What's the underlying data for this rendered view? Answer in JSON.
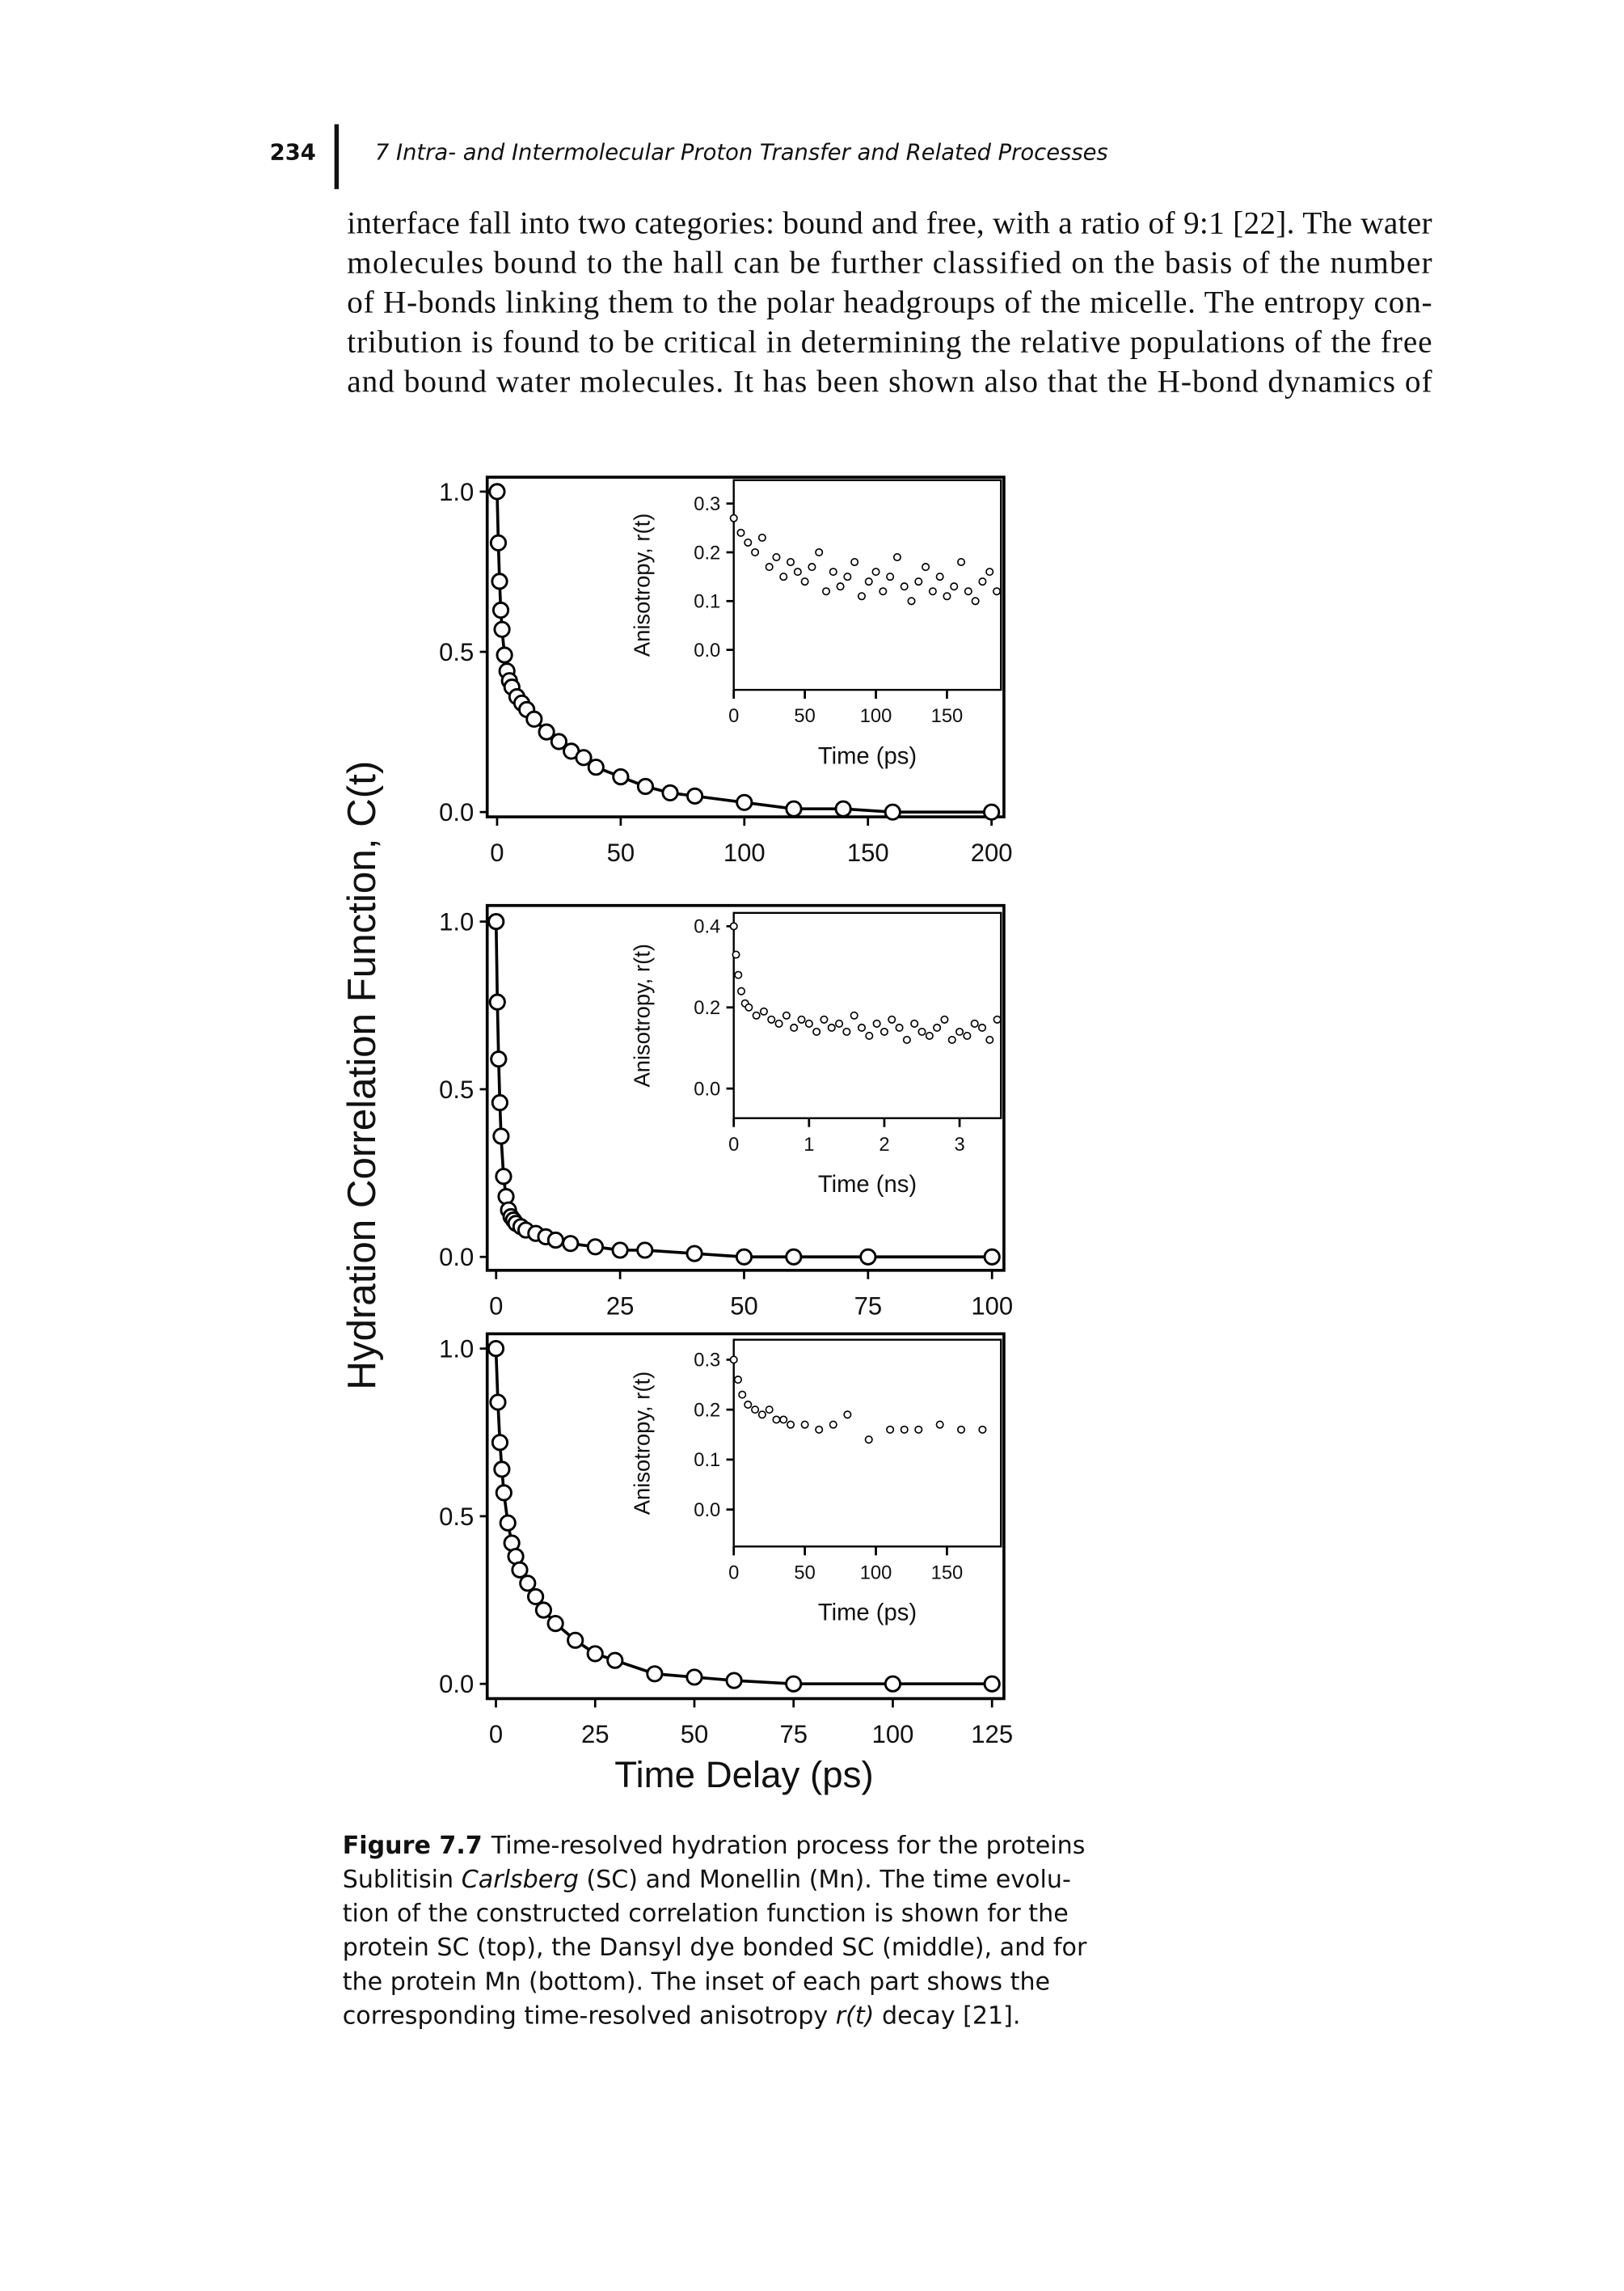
{
  "header": {
    "page_number": "234",
    "running_title": "7 Intra- and Intermolecular Proton Transfer and Related Processes"
  },
  "body": {
    "lines": [
      "interface fall into two categories: bound and free, with a ratio of 9:1 [22]. The water",
      "molecules bound to the hall can be further classified on the basis of the number",
      "of H-bonds linking them to the polar headgroups of the micelle. The entropy con-",
      "tribution is found to be critical in determining the relative populations of the free",
      "and bound water molecules. It has been shown also that the H-bond dynamics of"
    ]
  },
  "figure": {
    "ylabel": "Hydration Correlation Function, C(t)",
    "xlabel": "Time Delay (ps)",
    "caption": {
      "label": "Figure 7.7",
      "lines": [
        [
          "Time-resolved hydration process for the proteins"
        ],
        [
          "Sublitisin ",
          "Carlsberg",
          " (SC) and Monellin (Mn). The time evolu-"
        ],
        [
          "tion of the constructed correlation function is shown for the"
        ],
        [
          "protein SC (top), the Dansyl dye bonded SC (middle), and for"
        ],
        [
          "the protein Mn (bottom). The inset of each part shows the"
        ],
        [
          "corresponding time-resolved anisotropy ",
          "r(t)",
          " decay [21]."
        ]
      ]
    }
  },
  "chart_data": [
    {
      "type": "scatter",
      "fit_line": true,
      "color": "#000000",
      "x": [
        0,
        0.5,
        1,
        1.5,
        2,
        3,
        4,
        5,
        6,
        8,
        10,
        12,
        15,
        20,
        25,
        30,
        35,
        40,
        50,
        60,
        70,
        80,
        100,
        120,
        140,
        160,
        200
      ],
      "values": [
        1.0,
        0.84,
        0.72,
        0.63,
        0.57,
        0.49,
        0.44,
        0.41,
        0.39,
        0.36,
        0.34,
        0.32,
        0.29,
        0.25,
        0.22,
        0.19,
        0.17,
        0.14,
        0.11,
        0.08,
        0.06,
        0.05,
        0.03,
        0.01,
        0.01,
        0,
        0
      ],
      "xlim": [
        -4,
        205
      ],
      "ylim": [
        -0.015,
        1.045
      ],
      "xticks": [
        0,
        50,
        100,
        150,
        200
      ],
      "yticks": [
        {
          "value": 0,
          "label": "0.0"
        },
        {
          "value": 0.5,
          "label": "0.5"
        },
        {
          "value": 1,
          "label": "1.0"
        }
      ]
    },
    {
      "type": "scatter",
      "fit_line": false,
      "color": "#000000",
      "xlabel": "Time (ps)",
      "ylabel": "Anisotropy, r(t)",
      "x": [
        0,
        5,
        10,
        15,
        20,
        25,
        30,
        35,
        40,
        45,
        50,
        55,
        60,
        65,
        70,
        75,
        80,
        85,
        90,
        95,
        100,
        105,
        110,
        115,
        120,
        125,
        130,
        135,
        140,
        145,
        150,
        155,
        160,
        165,
        170,
        175,
        180,
        185
      ],
      "values": [
        0.27,
        0.24,
        0.22,
        0.2,
        0.23,
        0.17,
        0.19,
        0.15,
        0.18,
        0.16,
        0.14,
        0.17,
        0.2,
        0.12,
        0.16,
        0.13,
        0.15,
        0.18,
        0.11,
        0.14,
        0.16,
        0.12,
        0.15,
        0.19,
        0.13,
        0.1,
        0.14,
        0.17,
        0.12,
        0.15,
        0.11,
        0.13,
        0.18,
        0.12,
        0.1,
        0.14,
        0.16,
        0.12
      ],
      "xlim": [
        0,
        188
      ],
      "ylim": [
        -0.082,
        0.348
      ],
      "xticks": [
        0,
        50,
        100,
        150
      ],
      "yticks": [
        {
          "value": 0,
          "label": "0.0"
        },
        0.1,
        0.2,
        0.3
      ]
    },
    {
      "type": "scatter",
      "fit_line": true,
      "color": "#000000",
      "x": [
        0,
        0.25,
        0.5,
        0.75,
        1,
        1.5,
        2,
        2.5,
        3,
        3.5,
        4,
        5,
        6,
        8,
        10,
        12,
        15,
        20,
        25,
        30,
        40,
        50,
        60,
        75,
        100
      ],
      "values": [
        1.0,
        0.76,
        0.59,
        0.46,
        0.36,
        0.24,
        0.18,
        0.14,
        0.12,
        0.11,
        0.1,
        0.09,
        0.08,
        0.07,
        0.06,
        0.05,
        0.04,
        0.03,
        0.02,
        0.02,
        0.01,
        0,
        0,
        0,
        0
      ],
      "xlim": [
        -1.8,
        102.4
      ],
      "ylim": [
        -0.04,
        1.048
      ],
      "xticks": [
        0,
        25,
        50,
        75,
        100
      ],
      "yticks": [
        {
          "value": 0,
          "label": "0.0"
        },
        {
          "value": 0.5,
          "label": "0.5"
        },
        {
          "value": 1,
          "label": "1.0"
        }
      ]
    },
    {
      "type": "scatter",
      "fit_line": false,
      "color": "#000000",
      "xlabel": "Time (ns)",
      "ylabel": "Anisotropy, r(t)",
      "x": [
        0,
        0.03,
        0.06,
        0.1,
        0.15,
        0.2,
        0.3,
        0.4,
        0.5,
        0.6,
        0.7,
        0.8,
        0.9,
        1.0,
        1.1,
        1.2,
        1.3,
        1.4,
        1.5,
        1.6,
        1.7,
        1.8,
        1.9,
        2.0,
        2.1,
        2.2,
        2.3,
        2.4,
        2.5,
        2.6,
        2.7,
        2.8,
        2.9,
        3.0,
        3.1,
        3.2,
        3.3,
        3.4,
        3.5
      ],
      "values": [
        0.4,
        0.33,
        0.28,
        0.24,
        0.21,
        0.2,
        0.18,
        0.19,
        0.17,
        0.16,
        0.18,
        0.15,
        0.17,
        0.16,
        0.14,
        0.17,
        0.15,
        0.16,
        0.14,
        0.18,
        0.15,
        0.13,
        0.16,
        0.14,
        0.17,
        0.15,
        0.12,
        0.16,
        0.14,
        0.13,
        0.15,
        0.17,
        0.12,
        0.14,
        0.13,
        0.16,
        0.15,
        0.12,
        0.17
      ],
      "xlim": [
        0,
        3.55
      ],
      "ylim": [
        -0.073,
        0.433
      ],
      "xticks": [
        0,
        1,
        2,
        3
      ],
      "yticks": [
        {
          "value": 0,
          "label": "0.0"
        },
        0.2,
        0.4
      ]
    },
    {
      "type": "scatter",
      "fit_line": true,
      "color": "#000000",
      "x": [
        0,
        0.5,
        1,
        1.5,
        2,
        3,
        4,
        5,
        6,
        8,
        10,
        12,
        15,
        20,
        25,
        30,
        40,
        50,
        60,
        75,
        100,
        125
      ],
      "values": [
        1.0,
        0.84,
        0.72,
        0.64,
        0.57,
        0.48,
        0.42,
        0.38,
        0.34,
        0.3,
        0.26,
        0.22,
        0.18,
        0.13,
        0.09,
        0.07,
        0.03,
        0.02,
        0.01,
        0,
        0,
        0
      ],
      "xlim": [
        -2.2,
        128
      ],
      "ylim": [
        -0.044,
        1.044
      ],
      "xticks": [
        0,
        25,
        50,
        75,
        100,
        125
      ],
      "yticks": [
        {
          "value": 0,
          "label": "0.0"
        },
        {
          "value": 0.5,
          "label": "0.5"
        },
        {
          "value": 1,
          "label": "1.0"
        }
      ]
    },
    {
      "type": "scatter",
      "fit_line": false,
      "color": "#000000",
      "xlabel": "Time (ps)",
      "ylabel": "Anisotropy, r(t)",
      "x": [
        0,
        3,
        6,
        10,
        15,
        20,
        25,
        30,
        35,
        40,
        50,
        60,
        70,
        80,
        95,
        110,
        120,
        130,
        145,
        160,
        175
      ],
      "values": [
        0.3,
        0.26,
        0.23,
        0.21,
        0.2,
        0.19,
        0.2,
        0.18,
        0.18,
        0.17,
        0.17,
        0.16,
        0.17,
        0.19,
        0.14,
        0.16,
        0.16,
        0.16,
        0.17,
        0.16,
        0.16
      ],
      "xlim": [
        0,
        188
      ],
      "ylim": [
        -0.074,
        0.34
      ],
      "xticks": [
        0,
        50,
        100,
        150
      ],
      "yticks": [
        {
          "value": 0,
          "label": "0.0"
        },
        0.1,
        0.2,
        0.3
      ]
    }
  ]
}
